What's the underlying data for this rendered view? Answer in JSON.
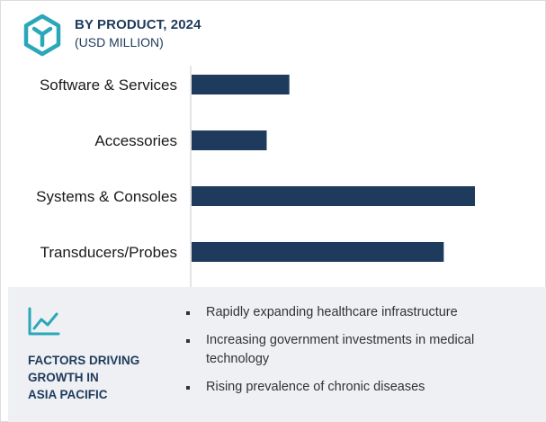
{
  "header": {
    "title": "BY PRODUCT, 2024",
    "subtitle": "(USD MILLION)",
    "logo_icon": "cube-logo-icon"
  },
  "colors": {
    "bar": "#1e3a5c",
    "accent": "#2aa7b8",
    "title": "#1e3a5c",
    "panel_bg": "#eef0f4"
  },
  "chart_data": {
    "type": "bar",
    "orientation": "horizontal",
    "categories": [
      "Software & Services",
      "Accessories",
      "Systems & Consoles",
      "Transducers/Probes"
    ],
    "values": [
      0.345,
      0.265,
      1.0,
      0.89
    ],
    "value_scale": "relative (no axis values printed)",
    "title": "BY PRODUCT, 2024",
    "xlabel": "",
    "ylabel": "",
    "grid": false,
    "legend": "none"
  },
  "factors": {
    "icon": "line-chart-icon",
    "title_lines": [
      "FACTORS DRIVING",
      "GROWTH IN",
      "ASIA PACIFIC"
    ],
    "items": [
      "Rapidly expanding healthcare infrastructure",
      "Increasing government investments in medical technology",
      "Rising prevalence of chronic diseases"
    ]
  }
}
